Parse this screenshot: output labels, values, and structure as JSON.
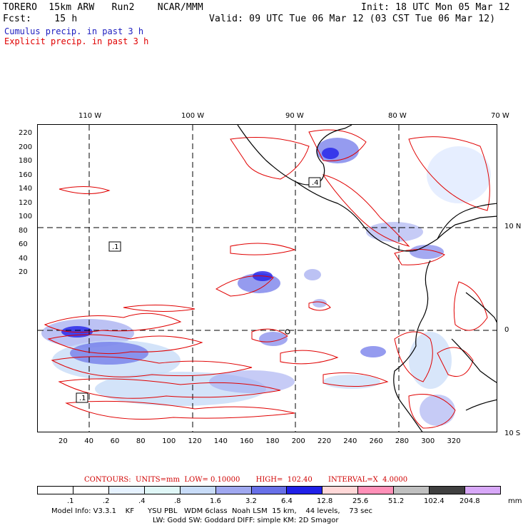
{
  "header": {
    "line1_left": "TORERO  15km ARW   Run2    NCAR/MMM",
    "line1_right": "Init: 18 UTC Mon 05 Mar 12",
    "line2_left": "Fcst:    15 h",
    "line2_right": "Valid: 09 UTC Tue 06 Mar 12 (03 CST Tue 06 Mar 12)",
    "line3": "Cumulus precip. in past 3 h",
    "line4": "Explicit precip. in past 3 h",
    "line3_color": "#2020c0",
    "line4_color": "#e00000"
  },
  "map": {
    "top_longitudes": [
      "110 W",
      "100 W",
      "90 W",
      "80 W",
      "70 W"
    ],
    "right_latitudes": [
      "10 N",
      "0",
      "10 S"
    ],
    "left_ticks": [
      "220",
      "200",
      "180",
      "160",
      "140",
      "120",
      "100",
      "80",
      "60",
      "40",
      "20"
    ],
    "bottom_ticks": [
      "20",
      "40",
      "60",
      "80",
      "100",
      "120",
      "140",
      "160",
      "180",
      "200",
      "220",
      "240",
      "260",
      "280",
      "300",
      "320"
    ],
    "contour_labels": [
      ".1",
      ".4",
      ".1"
    ],
    "land_color": "#ffffff",
    "coast_color": "#000000",
    "contour_color": "#e00000",
    "grid_color": "#000000"
  },
  "legend": {
    "contours_text": "CONTOURS:  UNITS=mm  LOW= 0.10000       HIGH=  102.40       INTERVAL=X  4.0000",
    "colorbar_colors": [
      "#ffffff",
      "#ffffff",
      "#e6f2ff",
      "#e0f7f7",
      "#c8dcf8",
      "#a0a8f0",
      "#6870e8",
      "#2020e8",
      "#ffd8d8",
      "#ff90b8",
      "#c0c0c0",
      "#404040",
      "#d8a8f8"
    ],
    "colorbar_labels": [
      ".1",
      ".2",
      ".4",
      ".8",
      "1.6",
      "3.2",
      "6.4",
      "12.8",
      "25.6",
      "51.2",
      "102.4",
      "204.8"
    ],
    "units": "mm"
  },
  "footer": {
    "line1": "Model Info: V3.3.1    KF      YSU PBL   WDM 6class  Noah LSM  15 km,    44 levels,    73 sec",
    "line2": "LW: Godd SW: Goddard DIFF: simple KM: 2D Smagor"
  }
}
